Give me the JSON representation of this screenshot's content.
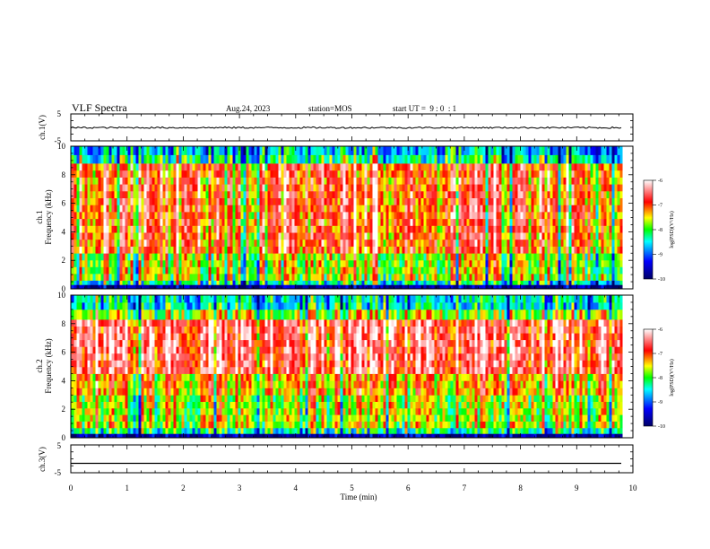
{
  "header": {
    "title": "VLF Spectra",
    "date": "Aug.24, 2023",
    "station": "station=MOS",
    "start": "start UT =  9 : 0  : 1"
  },
  "chart_data": [
    {
      "type": "line",
      "panel": "ch1-voltage",
      "ylabel": "ch.1(V)",
      "yticks": [
        "5",
        "-5"
      ],
      "ylim": [
        -5,
        5
      ],
      "xlim": [
        0,
        10
      ],
      "series": [
        {
          "x": [
            0,
            9.8
          ],
          "values": [
            -0.1,
            -0.1
          ]
        }
      ]
    },
    {
      "type": "heatmap",
      "panel": "ch1-spectrogram",
      "ylabel": "ch.1\nFrequency (kHz)",
      "yticks": [
        "0",
        "2",
        "4",
        "6",
        "8",
        "10"
      ],
      "ylim": [
        0,
        10
      ],
      "xlim": [
        0,
        9.8
      ],
      "colorbar": {
        "label": "log(PSD)(V²/Hz)",
        "ticks": [
          "-6",
          "-7",
          "-8",
          "-9",
          "-10"
        ],
        "range": [
          -10,
          -6
        ]
      },
      "bands": [
        {
          "f_low": 0.0,
          "f_high": 0.3,
          "level": -9.7
        },
        {
          "f_low": 0.3,
          "f_high": 0.6,
          "level": -8.3
        },
        {
          "f_low": 0.6,
          "f_high": 2.5,
          "level": -7.6
        },
        {
          "f_low": 2.5,
          "f_high": 8.8,
          "level": -6.9
        },
        {
          "f_low": 8.8,
          "f_high": 9.4,
          "level": -8.2
        },
        {
          "f_low": 9.4,
          "f_high": 10.0,
          "level": -8.6
        }
      ]
    },
    {
      "type": "heatmap",
      "panel": "ch2-spectrogram",
      "ylabel": "ch.2\nFrequency (kHz)",
      "yticks": [
        "0",
        "2",
        "4",
        "6",
        "8",
        "10"
      ],
      "ylim": [
        0,
        10
      ],
      "xlim": [
        0,
        9.8
      ],
      "colorbar": {
        "label": "log(PSD)(V²/Hz)",
        "ticks": [
          "-6",
          "-7",
          "-8",
          "-9",
          "-10"
        ],
        "range": [
          -10,
          -6
        ]
      },
      "bands": [
        {
          "f_low": 0.0,
          "f_high": 0.3,
          "level": -9.6
        },
        {
          "f_low": 0.3,
          "f_high": 0.7,
          "level": -8.2
        },
        {
          "f_low": 0.7,
          "f_high": 3.0,
          "level": -7.6
        },
        {
          "f_low": 3.0,
          "f_high": 4.5,
          "level": -7.2
        },
        {
          "f_low": 4.5,
          "f_high": 8.3,
          "level": -6.5
        },
        {
          "f_low": 8.3,
          "f_high": 9.0,
          "level": -7.6
        },
        {
          "f_low": 9.0,
          "f_high": 10.0,
          "level": -8.4
        }
      ]
    },
    {
      "type": "line",
      "panel": "ch3-voltage",
      "ylabel": "ch.3(V)",
      "yticks": [
        "5",
        "-5"
      ],
      "ylim": [
        -5,
        5
      ],
      "xlim": [
        0,
        10
      ],
      "xlabel": "Time (min)",
      "xticks": [
        "0",
        "1",
        "2",
        "3",
        "4",
        "5",
        "6",
        "7",
        "8",
        "9",
        "10"
      ],
      "series": [
        {
          "x": [
            0,
            9.8
          ],
          "values": [
            -1.6,
            -1.6
          ]
        }
      ]
    }
  ],
  "colors": {
    "scale": [
      "#000066",
      "#0000ff",
      "#00ffff",
      "#00ff00",
      "#ffff00",
      "#ff0000",
      "#ffffff"
    ]
  }
}
